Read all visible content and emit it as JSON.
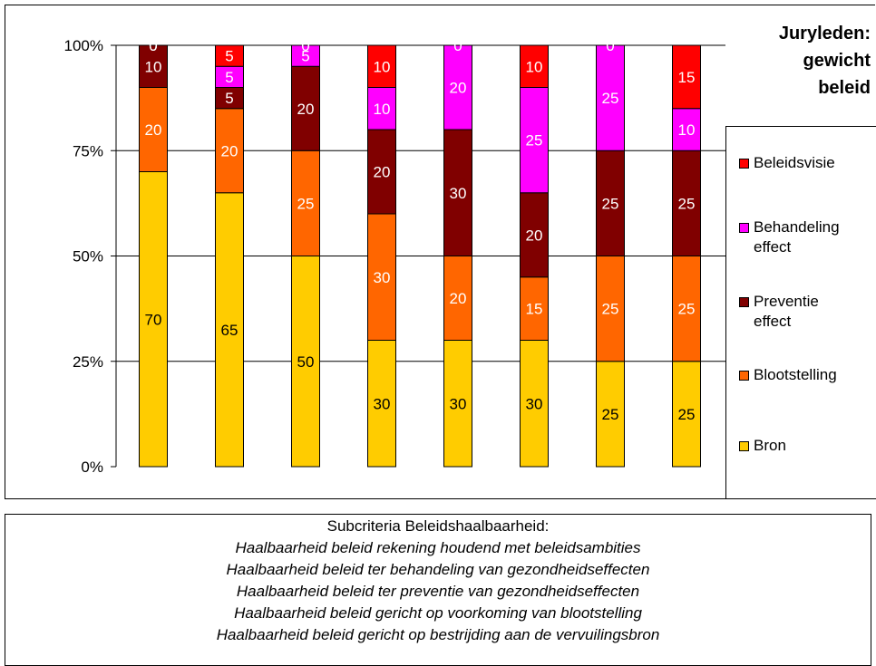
{
  "chart_data": {
    "type": "bar",
    "stacked": true,
    "percent": true,
    "categories": [
      "",
      "",
      "",
      "",
      "",
      "",
      "",
      ""
    ],
    "y_ticks": [
      "0%",
      "25%",
      "50%",
      "75%",
      "100%"
    ],
    "ylim": [
      0,
      100
    ],
    "grid": true,
    "legend_title": [
      "Juryleden:",
      "gewicht",
      "beleid"
    ],
    "legend_position": "right",
    "series": [
      {
        "name": "Bron",
        "color": "#FFCC00",
        "label_color": "#000000",
        "values": [
          70,
          65,
          50,
          30,
          30,
          30,
          25,
          25
        ]
      },
      {
        "name": "Blootstelling",
        "color": "#FF6600",
        "label_color": "#FFFFFF",
        "values": [
          20,
          20,
          25,
          30,
          20,
          15,
          25,
          25
        ]
      },
      {
        "name": "Preventie effect",
        "color": "#800000",
        "label_color": "#FFFFFF",
        "values": [
          10,
          5,
          20,
          20,
          30,
          20,
          25,
          25
        ]
      },
      {
        "name": "Behandeling effect",
        "color": "#FF00FF",
        "label_color": "#FFFFFF",
        "values": [
          0,
          5,
          5,
          10,
          20,
          25,
          25,
          10
        ]
      },
      {
        "name": "Beleidsvisie",
        "color": "#FF0000",
        "label_color": "#FFFFFF",
        "values": [
          0,
          5,
          0,
          10,
          0,
          10,
          0,
          15
        ]
      }
    ]
  },
  "legend": {
    "title_lines": [
      "Juryleden:",
      "gewicht",
      "beleid"
    ],
    "items": [
      {
        "lines": [
          "Beleidsvisie"
        ],
        "color": "#FF0000"
      },
      {
        "lines": [
          "Behandeling",
          "effect"
        ],
        "color": "#FF00FF"
      },
      {
        "lines": [
          "Preventie",
          "effect"
        ],
        "color": "#800000"
      },
      {
        "lines": [
          "Blootstelling"
        ],
        "color": "#FF6600"
      },
      {
        "lines": [
          "Bron"
        ],
        "color": "#FFCC00"
      }
    ]
  },
  "caption": {
    "title": "Subcriteria Beleidshaalbaarheid:",
    "lines": [
      "Haalbaarheid beleid rekening houdend met beleidsambities",
      "Haalbaarheid beleid ter behandeling van gezondheidseffecten",
      "Haalbaarheid beleid ter preventie van gezondheidseffecten",
      "Haalbaarheid beleid gericht op voorkoming van blootstelling",
      "Haalbaarheid beleid gericht op bestrijding aan de vervuilingsbron"
    ]
  }
}
